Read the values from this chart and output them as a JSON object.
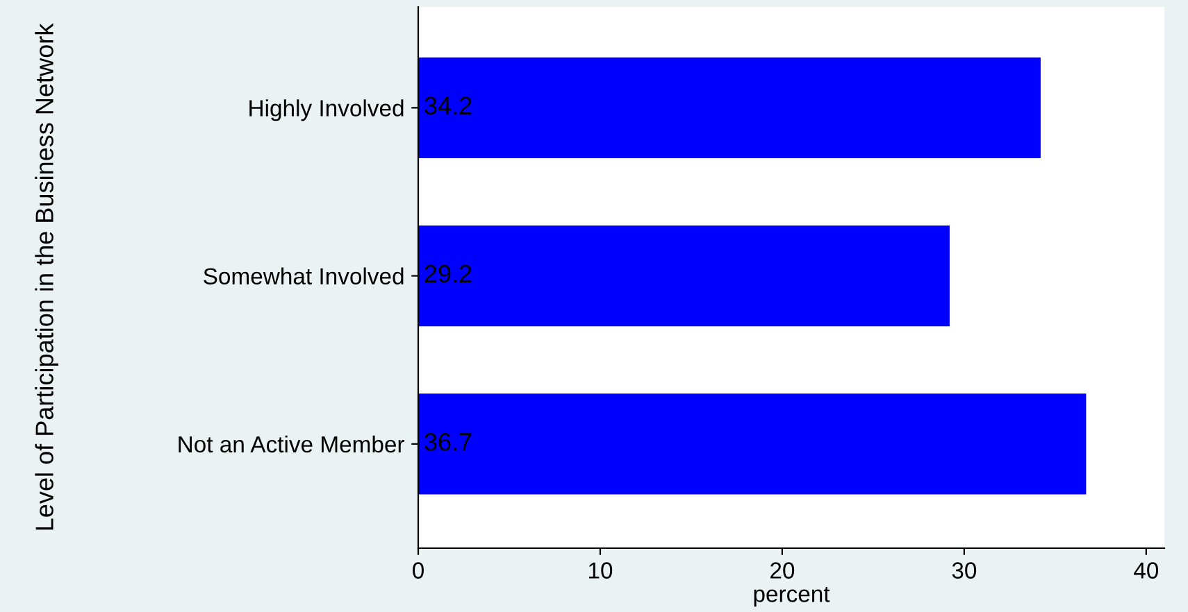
{
  "chart_data": {
    "type": "bar",
    "orientation": "horizontal",
    "xlabel": "percent",
    "ylabel": "Level of Participation in the Business Network",
    "categories": [
      "Highly Involved",
      "Somewhat Involved",
      "Not an Active Member"
    ],
    "values": [
      34.2,
      29.2,
      36.7
    ],
    "color": "#0000ff",
    "xlim": [
      0,
      41
    ],
    "xticks": [
      0,
      10,
      20,
      30,
      40
    ],
    "grid": false,
    "data_labels": true
  }
}
